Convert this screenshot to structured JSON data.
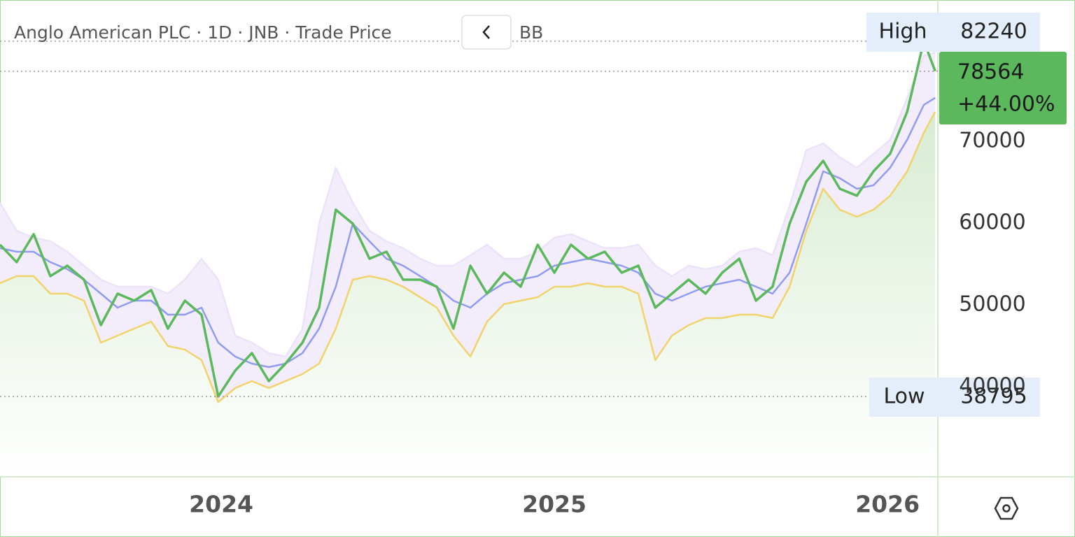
{
  "chart_data": {
    "type": "line",
    "title": "Anglo American PLC · 1D · JNB · Trade Price",
    "indicator": "BB",
    "high": {
      "label": "High",
      "value": 82240
    },
    "low": {
      "label": "Low",
      "value": 38795
    },
    "last_price": 78564,
    "change": "+44.00%",
    "x": [
      2023.336,
      2023.386,
      2023.437,
      2023.487,
      2023.538,
      2023.588,
      2023.639,
      2023.689,
      2023.739,
      2023.79,
      2023.84,
      2023.891,
      2023.941,
      2023.991,
      2024.042,
      2024.092,
      2024.143,
      2024.193,
      2024.244,
      2024.294,
      2024.344,
      2024.395,
      2024.445,
      2024.496,
      2024.546,
      2024.597,
      2024.647,
      2024.697,
      2024.748,
      2024.798,
      2024.849,
      2024.899,
      2024.95,
      2025.0,
      2025.05,
      2025.101,
      2025.151,
      2025.202,
      2025.252,
      2025.303,
      2025.353,
      2025.403,
      2025.454,
      2025.504,
      2025.555,
      2025.605,
      2025.655,
      2025.706,
      2025.756,
      2025.807,
      2025.857,
      2025.908,
      2025.958,
      2026.008,
      2026.059,
      2026.109,
      2026.143
    ],
    "series": [
      {
        "color": "#ece2f9",
        "fill": "#f3edfb",
        "values": [
          62480,
          59060,
          58210,
          57780,
          56500,
          54790,
          53080,
          52220,
          52220,
          52220,
          51370,
          53080,
          55640,
          53080,
          46240,
          45380,
          44100,
          43670,
          47090,
          59920,
          66760,
          62480,
          59060,
          57780,
          56930,
          55640,
          54790,
          54790,
          56070,
          57350,
          55640,
          55640,
          56500,
          58210,
          58640,
          57780,
          56930,
          56930,
          57350,
          54790,
          53510,
          54790,
          54360,
          54790,
          56500,
          56930,
          56070,
          62060,
          68900,
          69750,
          68040,
          66760,
          68470,
          70180,
          75310,
          80440,
          80870
        ]
      },
      {
        "color": "#8f9cf2",
        "values": [
          56930,
          56500,
          56500,
          55220,
          54360,
          53080,
          51370,
          49660,
          50510,
          50510,
          48800,
          48800,
          49660,
          45380,
          43670,
          42820,
          42390,
          42820,
          44100,
          47090,
          52220,
          59920,
          57780,
          55640,
          54790,
          53510,
          52220,
          50510,
          49660,
          51370,
          52650,
          53080,
          53510,
          54790,
          55220,
          55640,
          55220,
          54790,
          53930,
          51370,
          50510,
          51370,
          52220,
          52650,
          53080,
          52220,
          51370,
          53930,
          59920,
          66330,
          65480,
          64190,
          64620,
          66760,
          70180,
          74450,
          75310
        ]
      },
      {
        "color": "#f0d36a",
        "fill": "#e9f3e4",
        "values": [
          52650,
          53510,
          53510,
          51370,
          51370,
          50510,
          45380,
          46240,
          47090,
          47950,
          44960,
          44530,
          43250,
          38120,
          39830,
          40680,
          39830,
          40680,
          41540,
          42820,
          47090,
          53080,
          53510,
          53080,
          52220,
          50940,
          49660,
          46240,
          43670,
          47950,
          50090,
          50510,
          50940,
          52220,
          52220,
          52650,
          52220,
          52220,
          51370,
          43250,
          46240,
          47520,
          48380,
          48380,
          48800,
          48800,
          48380,
          52220,
          59060,
          64190,
          61630,
          60770,
          61630,
          63340,
          66330,
          71030,
          73600
        ]
      },
      {
        "color": "#5cb85c",
        "values": [
          57350,
          55220,
          58640,
          53510,
          54790,
          53080,
          47520,
          51370,
          50510,
          51800,
          47090,
          50510,
          48800,
          38800,
          41960,
          44100,
          40680,
          42820,
          45380,
          49660,
          61630,
          59920,
          55640,
          56500,
          53080,
          53080,
          52220,
          47090,
          54790,
          51370,
          53930,
          52220,
          57350,
          53930,
          57350,
          55640,
          56500,
          53930,
          54790,
          49660,
          51370,
          53080,
          51370,
          53930,
          55640,
          50510,
          52220,
          59920,
          65050,
          67610,
          64190,
          63340,
          66330,
          68470,
          73600,
          82240,
          78564
        ]
      }
    ],
    "xlim": [
      2023.336,
      2026.151
    ],
    "xticks": [
      2024,
      2025,
      2026
    ],
    "ylim": [
      28970,
      87270
    ],
    "yticks": [
      40000,
      50000,
      60000,
      70000
    ],
    "grid": false,
    "price_box_color": "#5cb85c",
    "label_box_color": "#e3eefa"
  }
}
